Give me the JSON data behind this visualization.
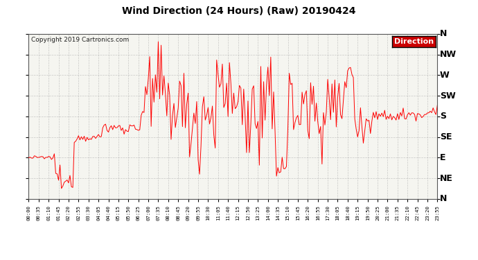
{
  "title": "Wind Direction (24 Hours) (Raw) 20190424",
  "copyright": "Copyright 2019 Cartronics.com",
  "legend_label": "Direction",
  "legend_bg": "#cc0000",
  "line_color": "#ff0000",
  "bg_color": "#ffffff",
  "plot_bg_color": "#f5f5f0",
  "grid_color": "#aaaaaa",
  "ytick_labels": [
    "N",
    "NW",
    "W",
    "SW",
    "S",
    "SE",
    "E",
    "NE",
    "N"
  ],
  "ytick_values": [
    360,
    315,
    270,
    225,
    180,
    135,
    90,
    45,
    0
  ],
  "ylim": [
    0,
    360
  ],
  "x_tick_interval_minutes": 35,
  "figsize": [
    6.9,
    3.75
  ],
  "dpi": 100
}
